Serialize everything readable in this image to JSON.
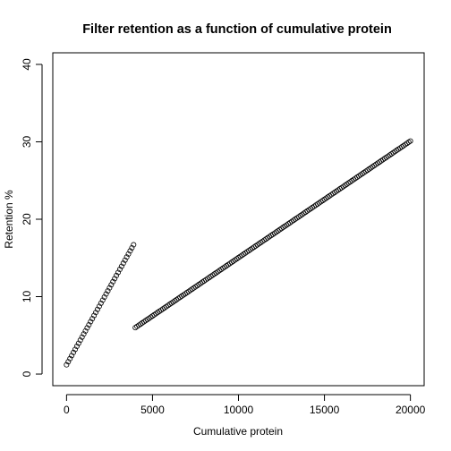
{
  "chart_data": {
    "type": "scatter",
    "title": "Filter retention as a function of cumulative protein",
    "xlabel": "Cumulative protein",
    "ylabel": "Retention %",
    "xlim": [
      -800,
      20800
    ],
    "ylim": [
      -1.5,
      41.5
    ],
    "xticks": [
      0,
      5000,
      10000,
      15000,
      20000
    ],
    "yticks": [
      0,
      10,
      20,
      30,
      40
    ],
    "grid": false,
    "marker": "open-circle",
    "series": [
      {
        "points_generated": "linear",
        "x_start": 0,
        "x_end": 3900,
        "y_start": 1.2,
        "y_end": 16.7,
        "count": 40
      },
      {
        "points_generated": "linear",
        "x_start": 4000,
        "x_end": 20000,
        "y_start": 6.0,
        "y_end": 30.1,
        "count": 161
      }
    ]
  }
}
